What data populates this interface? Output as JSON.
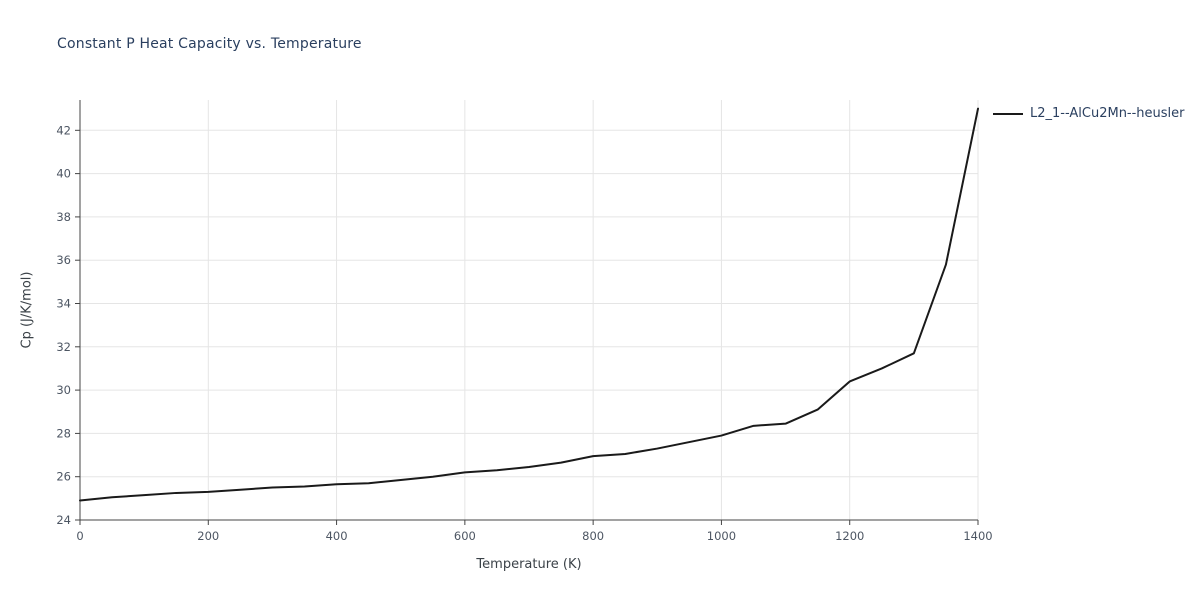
{
  "chart_data": {
    "type": "line",
    "title": "Constant P Heat Capacity vs. Temperature",
    "xlabel": "Temperature (K)",
    "ylabel": "Cp (J/K/mol)",
    "xlim": [
      0,
      1400
    ],
    "ylim": [
      24,
      43.4
    ],
    "x_ticks": [
      0,
      200,
      400,
      600,
      800,
      1000,
      1200,
      1400
    ],
    "y_ticks": [
      24,
      26,
      28,
      30,
      32,
      34,
      36,
      38,
      40,
      42
    ],
    "grid": true,
    "legend_position": "top-right-outside",
    "series": [
      {
        "name": "L2_1--AlCu2Mn--heusler",
        "color": "#1a1a1a",
        "x": [
          0,
          50,
          100,
          150,
          200,
          250,
          300,
          350,
          400,
          450,
          500,
          550,
          600,
          650,
          700,
          750,
          800,
          850,
          900,
          950,
          1000,
          1050,
          1100,
          1150,
          1200,
          1250,
          1300,
          1350,
          1400
        ],
        "y": [
          24.9,
          25.05,
          25.15,
          25.25,
          25.3,
          25.4,
          25.5,
          25.55,
          25.65,
          25.7,
          25.85,
          26.0,
          26.2,
          26.3,
          26.45,
          26.65,
          26.95,
          27.05,
          27.3,
          27.6,
          27.9,
          28.35,
          28.45,
          29.1,
          30.4,
          31.0,
          31.7,
          35.8,
          43.0
        ]
      }
    ],
    "colors": {
      "line": "#1a1a1a",
      "grid": "#e5e5e5",
      "axis": "#444444",
      "title_text": "#2a3f5f",
      "tick_text": "#4d5663"
    }
  }
}
